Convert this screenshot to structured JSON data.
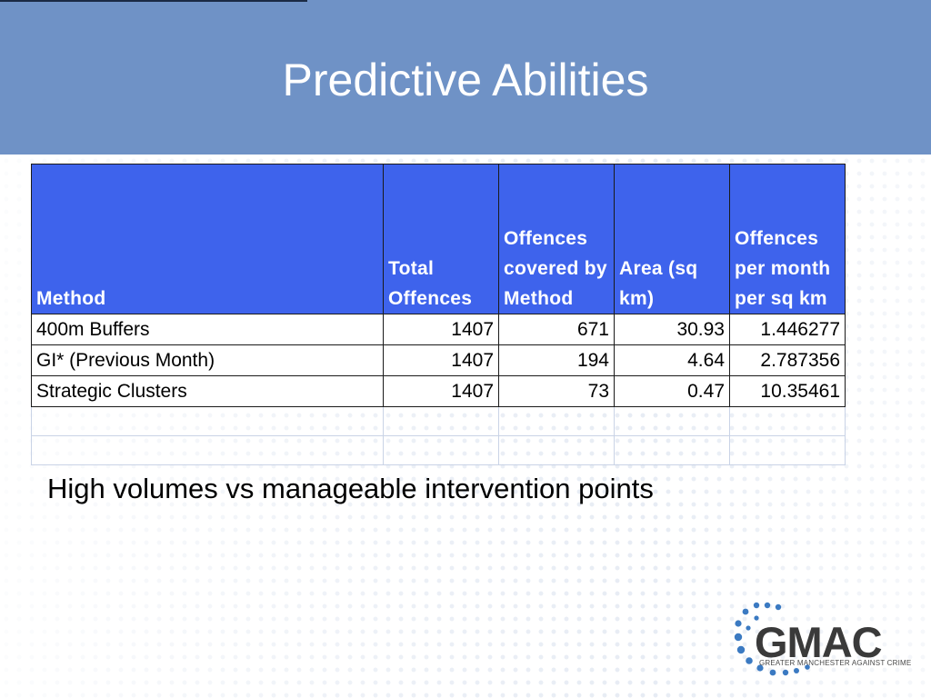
{
  "slide": {
    "title": "Predictive Abilities",
    "caption": "High volumes vs manageable intervention points"
  },
  "table": {
    "headers": [
      "Method",
      "Total Offences",
      "Offences covered by Method",
      "Area (sq km)",
      "Offences per month per sq km"
    ],
    "rows": [
      [
        "400m Buffers",
        "1407",
        "671",
        "30.93",
        "1.446277"
      ],
      [
        "GI* (Previous Month)",
        "1407",
        "194",
        "4.64",
        "2.787356"
      ],
      [
        "Strategic Clusters",
        "1407",
        "73",
        "0.47",
        "10.35461"
      ]
    ]
  },
  "logo": {
    "word": "GMAC",
    "subtitle": "GREATER MANCHESTER AGAINST CRIME",
    "dot_color": "#3b7ac2",
    "text_color": "#3a3a3a"
  },
  "colors": {
    "header_bg": "#6f92c6",
    "table_header_bg": "#3e63ec"
  }
}
